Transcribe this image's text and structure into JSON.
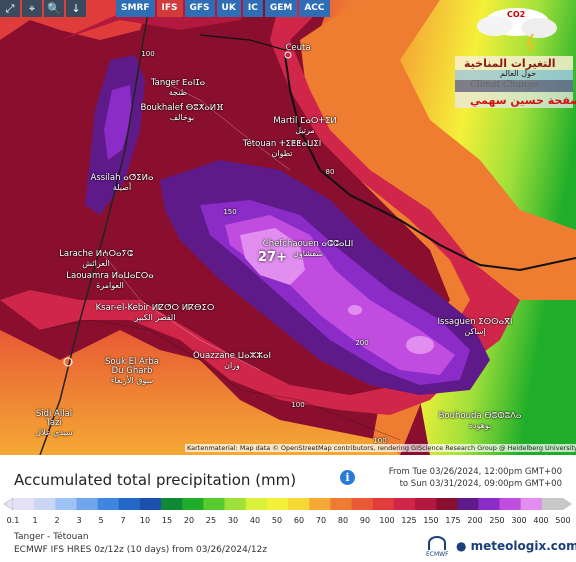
{
  "toolbar": {
    "buttons": [
      {
        "icon": "expand-icon",
        "glyph": "⤢"
      },
      {
        "icon": "location-icon",
        "glyph": "⌖"
      },
      {
        "icon": "zoom-icon",
        "glyph": "🔍"
      },
      {
        "icon": "marker-icon",
        "glyph": "↓"
      }
    ],
    "models": [
      {
        "label": "SMRF",
        "active": false
      },
      {
        "label": "IFS",
        "active": true
      },
      {
        "label": "GFS",
        "active": false
      },
      {
        "label": "UK",
        "active": false
      },
      {
        "label": "IC",
        "active": false
      },
      {
        "label": "GEM",
        "active": false
      },
      {
        "label": "ACC",
        "active": false
      }
    ]
  },
  "map": {
    "cities": [
      {
        "name": "Ceuta",
        "arabic": ""
      },
      {
        "name": "Tanger ⴹⴰⵏⵊⴰ",
        "arabic": "طنجة"
      },
      {
        "name": "Boukhalef ⴱⵓⵅⴰⵍⴼ",
        "arabic": "بوخالف"
      },
      {
        "name": "Martil ⵎⴰⵔⵜⵉⵍ",
        "arabic": "مرتيل"
      },
      {
        "name": "Tétouan ⵜⵉⵟⵟⴰⵡⵉⵏ",
        "arabic": "تطوان"
      },
      {
        "name": "Assilah ⴰⵚⵉⵍⴰ",
        "arabic": "أصيلة"
      },
      {
        "name": "Chefchaouen ⴰⵛⵛⴰⵡⵏ",
        "arabic": "شفشاون"
      },
      {
        "name": "Larache ⵍⵄⵔⴰⵢⵛ",
        "arabic": "العرائش"
      },
      {
        "name": "Laouamra ⵍⴰⵡⴰⵎⵔⴰ",
        "arabic": "العوامرة"
      },
      {
        "name": "Ksar-el-Kebir ⵍⵇⵚⵔ ⵍⴽⴱⵉⵔ",
        "arabic": "القصر الكبير"
      },
      {
        "name": "Ouazzane ⵡⴰⵣⵣⴰⵏ",
        "arabic": "وزان"
      },
      {
        "name": "Souk El Arba Du Gharb",
        "arabic": "سوق الأربعاء"
      },
      {
        "name": "Issaguen ⵉⵙⵙⴰⴳⵏ",
        "arabic": "إساكن"
      },
      {
        "name": "Sidi Allal Tazi",
        "arabic": "سيدي علال"
      },
      {
        "name": "Bouhouda ⴱⵓⵀⵓⴷⴰ",
        "arabic": "بوهودة"
      }
    ],
    "max_value": "27+",
    "contour_labels": [
      "100",
      "150",
      "80",
      "200",
      "100",
      "100"
    ],
    "attribution": "Kartenmaterial: Map data © OpenStreetMap contributors, rendering GIScience Research Group @ Heidelberg University",
    "logo": {
      "co2": "CO2",
      "line1": "التغيرات المناخية",
      "line2": "حول العالم",
      "line3": "Climat Change",
      "line4": "صفحة حسين سهمي"
    }
  },
  "legend": {
    "title": "Accumulated total precipitation (mm)",
    "period_from": "From Tue 03/26/2024, 12:00pm GMT+00",
    "period_to": "to Sun 03/31/2024, 09:00pm GMT+00",
    "scale": [
      "0.1",
      "1",
      "2",
      "3",
      "5",
      "7",
      "10",
      "15",
      "20",
      "25",
      "30",
      "40",
      "50",
      "60",
      "70",
      "80",
      "90",
      "100",
      "125",
      "150",
      "175",
      "200",
      "250",
      "300",
      "400",
      "500"
    ],
    "colors": [
      "#e6e0f5",
      "#c9d7f5",
      "#9fc2f5",
      "#6fa6ee",
      "#3f86e0",
      "#2468c9",
      "#1a4fad",
      "#0d8a35",
      "#1fad2a",
      "#56cc2f",
      "#9fe03a",
      "#d9f03d",
      "#f5f03a",
      "#f7d736",
      "#f5a934",
      "#ee7d32",
      "#e85a34",
      "#e03c3c",
      "#d0264a",
      "#b3183e",
      "#8a0f2e",
      "#5f1a8a",
      "#8b2bc8",
      "#c04de0",
      "#e28ef0",
      "#c8c8c8"
    ],
    "location": "Tanger - Tétouan",
    "model_run": "ECMWF IFS HRES 0z/12z (10 days) from 03/26/2024/12z",
    "ecmwf": "ECMWF",
    "brand": "meteologix.com"
  }
}
